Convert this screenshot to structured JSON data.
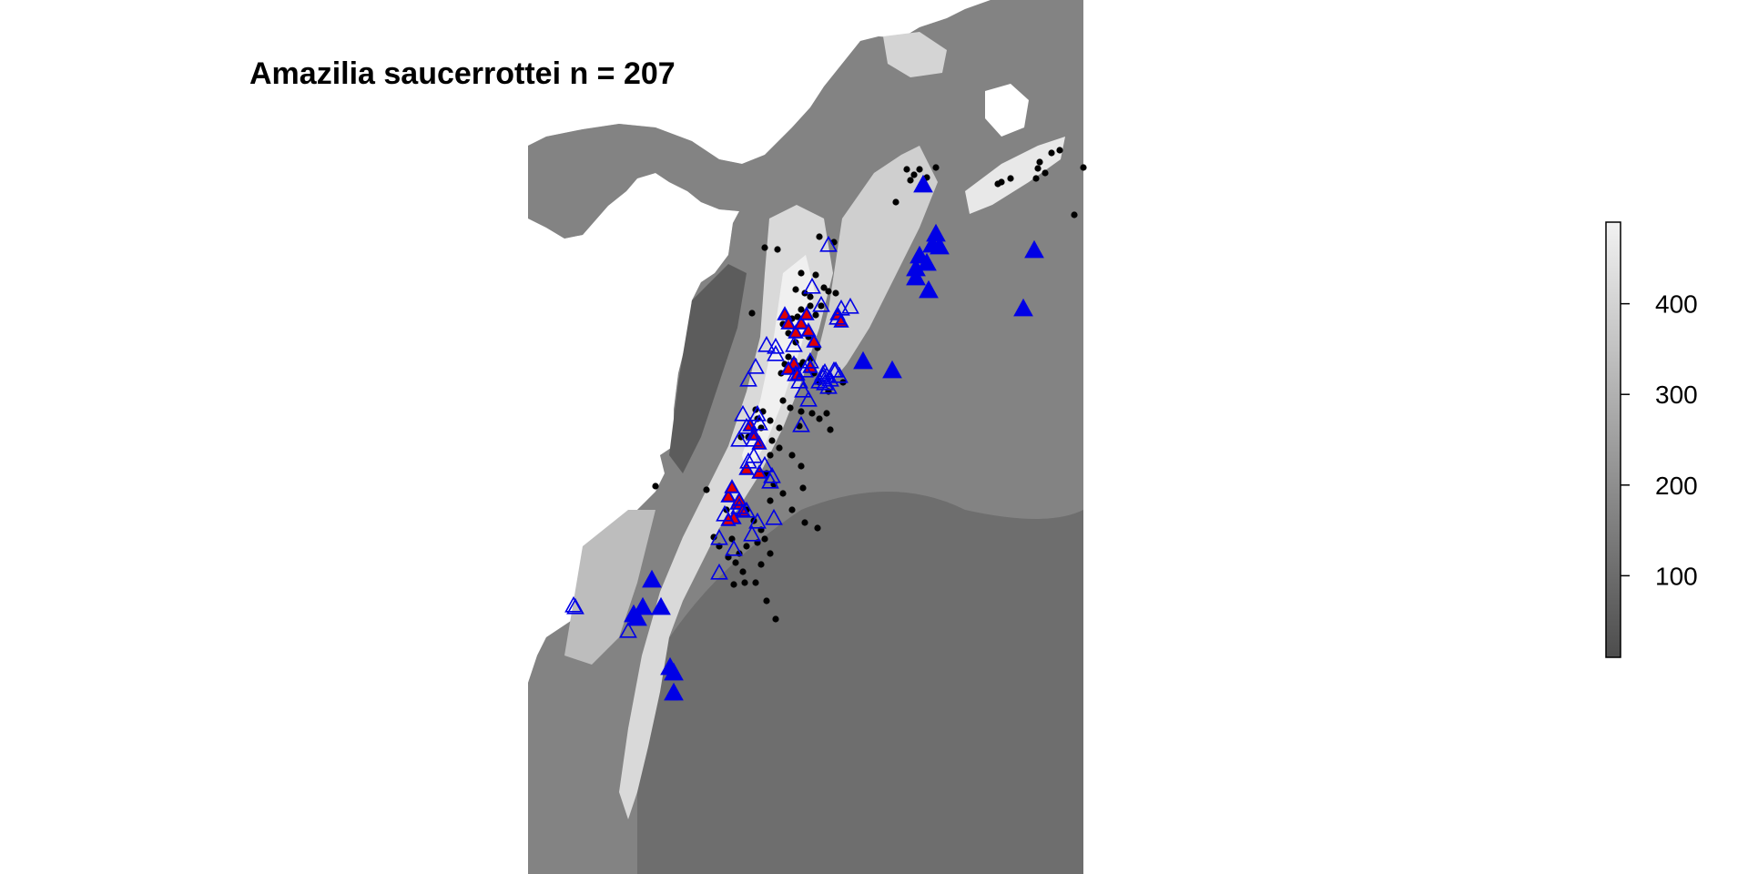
{
  "title": "Amazilia saucerrottei n = 207",
  "legend": {
    "ticks": [
      "100",
      "200",
      "300",
      "400"
    ],
    "tick_values": [
      100,
      200,
      300,
      400
    ],
    "range": [
      10,
      490
    ],
    "gradient_colors": [
      "#4d4d4d",
      "#f2f2f2"
    ]
  },
  "map": {
    "land_color_low": "#5a5a5a",
    "land_color_high": "#f4f4f4",
    "colors": {
      "dot": "#000000",
      "triangle": "#0000e6",
      "triangle_accent": "#e00000"
    }
  }
}
